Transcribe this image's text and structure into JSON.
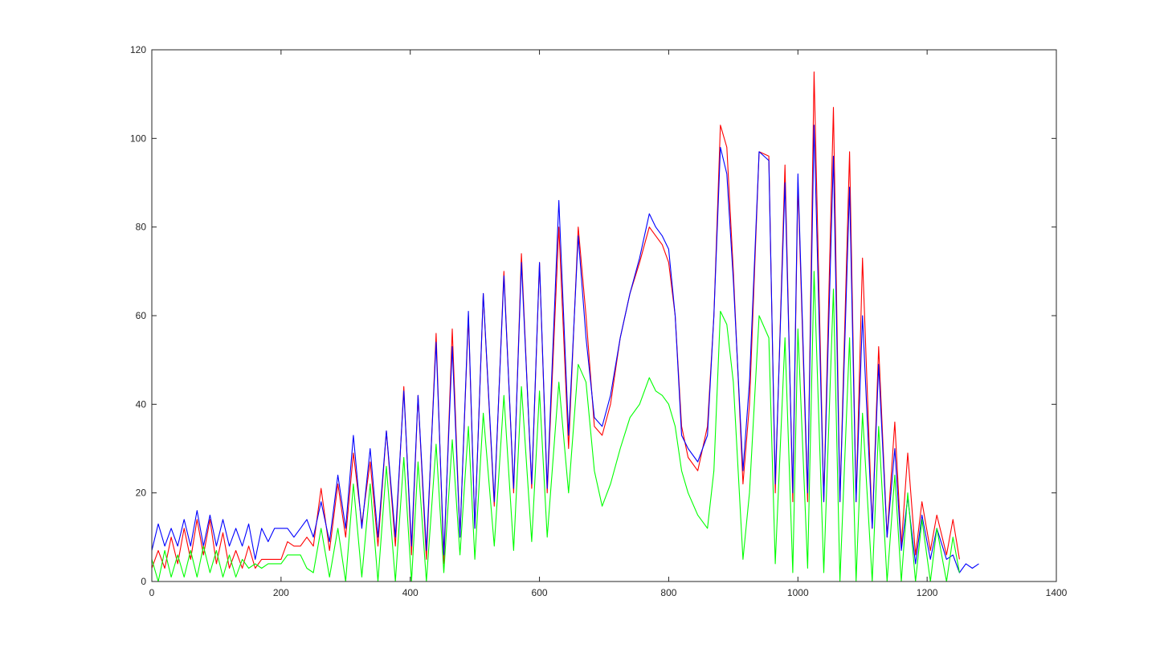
{
  "chart_data": {
    "type": "line",
    "xlim": [
      0,
      1400
    ],
    "ylim": [
      0,
      120
    ],
    "xticks": [
      0,
      200,
      400,
      600,
      800,
      1000,
      1200,
      1400
    ],
    "yticks": [
      0,
      20,
      40,
      60,
      80,
      100,
      120
    ],
    "xtick_labels": [
      "0",
      "200",
      "400",
      "600",
      "800",
      "1000",
      "1200",
      "1400"
    ],
    "ytick_labels": [
      "0",
      "20",
      "40",
      "60",
      "80",
      "100",
      "120"
    ],
    "grid": false,
    "box": true,
    "series": [
      {
        "color": "#ff0000",
        "x": [
          0,
          10,
          20,
          30,
          40,
          50,
          60,
          70,
          80,
          90,
          100,
          110,
          120,
          130,
          140,
          150,
          160,
          170,
          180,
          190,
          200,
          210,
          220,
          230,
          240,
          250,
          262,
          275,
          288,
          300,
          312,
          325,
          338,
          350,
          363,
          377,
          390,
          402,
          412,
          425,
          440,
          452,
          465,
          477,
          490,
          500,
          513,
          530,
          545,
          560,
          572,
          588,
          600,
          612,
          630,
          645,
          660,
          672,
          685,
          697,
          710,
          725,
          740,
          755,
          770,
          780,
          790,
          800,
          810,
          820,
          830,
          845,
          860,
          870,
          880,
          890,
          900,
          915,
          925,
          940,
          955,
          965,
          980,
          992,
          1000,
          1015,
          1025,
          1040,
          1055,
          1065,
          1080,
          1090,
          1100,
          1115,
          1125,
          1138,
          1150,
          1160,
          1170,
          1182,
          1192,
          1205,
          1215,
          1230,
          1240,
          1250
        ],
        "y": [
          3,
          7,
          3,
          10,
          4,
          12,
          5,
          14,
          6,
          14,
          4,
          11,
          3,
          7,
          3,
          8,
          3,
          5,
          5,
          5,
          5,
          9,
          8,
          8,
          10,
          8,
          21,
          7,
          22,
          10,
          29,
          13,
          27,
          8,
          34,
          8,
          44,
          6,
          42,
          5,
          56,
          4,
          57,
          10,
          60,
          12,
          65,
          17,
          70,
          20,
          74,
          21,
          72,
          20,
          80,
          30,
          80,
          60,
          35,
          33,
          40,
          55,
          65,
          72,
          80,
          78,
          76,
          72,
          60,
          35,
          28,
          25,
          35,
          60,
          103,
          98,
          70,
          22,
          40,
          97,
          96,
          20,
          94,
          18,
          90,
          18,
          115,
          18,
          107,
          18,
          97,
          18,
          73,
          12,
          53,
          10,
          36,
          8,
          29,
          6,
          18,
          7,
          15,
          6,
          14,
          5
        ]
      },
      {
        "color": "#0000ff",
        "x": [
          0,
          10,
          20,
          30,
          40,
          50,
          60,
          70,
          80,
          90,
          100,
          110,
          120,
          130,
          140,
          150,
          160,
          170,
          180,
          190,
          200,
          210,
          220,
          230,
          240,
          250,
          262,
          275,
          288,
          300,
          312,
          325,
          338,
          350,
          363,
          377,
          390,
          402,
          412,
          425,
          440,
          452,
          465,
          477,
          490,
          500,
          513,
          530,
          545,
          560,
          572,
          588,
          600,
          612,
          630,
          645,
          660,
          672,
          685,
          697,
          710,
          725,
          740,
          755,
          770,
          780,
          790,
          800,
          810,
          820,
          830,
          845,
          860,
          870,
          880,
          890,
          900,
          915,
          925,
          940,
          955,
          965,
          980,
          992,
          1000,
          1015,
          1025,
          1040,
          1055,
          1065,
          1080,
          1090,
          1100,
          1115,
          1125,
          1138,
          1150,
          1160,
          1170,
          1182,
          1192,
          1205,
          1215,
          1230,
          1240,
          1250,
          1260,
          1270,
          1280
        ],
        "y": [
          7,
          13,
          8,
          12,
          8,
          14,
          8,
          16,
          8,
          15,
          8,
          14,
          8,
          12,
          8,
          13,
          5,
          12,
          9,
          12,
          12,
          12,
          10,
          12,
          14,
          10,
          18,
          9,
          24,
          12,
          33,
          12,
          30,
          10,
          34,
          10,
          43,
          8,
          42,
          7,
          54,
          6,
          53,
          10,
          61,
          12,
          65,
          18,
          69,
          21,
          72,
          22,
          72,
          21,
          86,
          33,
          78,
          55,
          37,
          35,
          42,
          55,
          65,
          73,
          83,
          80,
          78,
          75,
          60,
          33,
          30,
          27,
          33,
          60,
          98,
          92,
          68,
          25,
          45,
          97,
          95,
          22,
          90,
          20,
          92,
          20,
          103,
          18,
          96,
          18,
          89,
          18,
          60,
          12,
          49,
          10,
          30,
          7,
          19,
          4,
          15,
          5,
          12,
          5,
          6,
          2,
          4,
          3,
          4
        ]
      },
      {
        "color": "#00ff00",
        "x": [
          0,
          10,
          20,
          30,
          40,
          50,
          60,
          70,
          80,
          90,
          100,
          110,
          120,
          130,
          140,
          150,
          160,
          170,
          180,
          190,
          200,
          210,
          220,
          230,
          240,
          250,
          262,
          275,
          288,
          300,
          312,
          325,
          338,
          350,
          363,
          377,
          390,
          402,
          412,
          425,
          440,
          452,
          465,
          477,
          490,
          500,
          513,
          530,
          545,
          560,
          572,
          588,
          600,
          612,
          630,
          645,
          660,
          672,
          685,
          697,
          710,
          725,
          740,
          755,
          770,
          780,
          790,
          800,
          810,
          820,
          830,
          845,
          860,
          870,
          880,
          890,
          900,
          915,
          925,
          940,
          955,
          965,
          980,
          992,
          1000,
          1015,
          1025,
          1040,
          1055,
          1065,
          1080,
          1090,
          1100,
          1115,
          1125,
          1138,
          1150,
          1160,
          1170,
          1182,
          1192,
          1205,
          1215,
          1230,
          1240,
          1250
        ],
        "y": [
          5,
          0,
          7,
          1,
          6,
          1,
          7,
          1,
          8,
          2,
          7,
          1,
          6,
          1,
          5,
          3,
          4,
          3,
          4,
          4,
          4,
          6,
          6,
          6,
          3,
          2,
          12,
          1,
          12,
          0,
          22,
          1,
          22,
          0,
          26,
          0,
          28,
          0,
          27,
          0,
          31,
          2,
          32,
          6,
          35,
          5,
          38,
          8,
          42,
          7,
          44,
          9,
          43,
          10,
          45,
          20,
          49,
          45,
          25,
          17,
          22,
          30,
          37,
          40,
          46,
          43,
          42,
          40,
          35,
          25,
          20,
          15,
          12,
          25,
          61,
          58,
          45,
          5,
          20,
          60,
          55,
          4,
          55,
          2,
          57,
          3,
          70,
          2,
          66,
          0,
          55,
          0,
          38,
          0,
          35,
          0,
          24,
          0,
          20,
          0,
          14,
          0,
          12,
          0,
          10,
          2
        ]
      }
    ]
  }
}
